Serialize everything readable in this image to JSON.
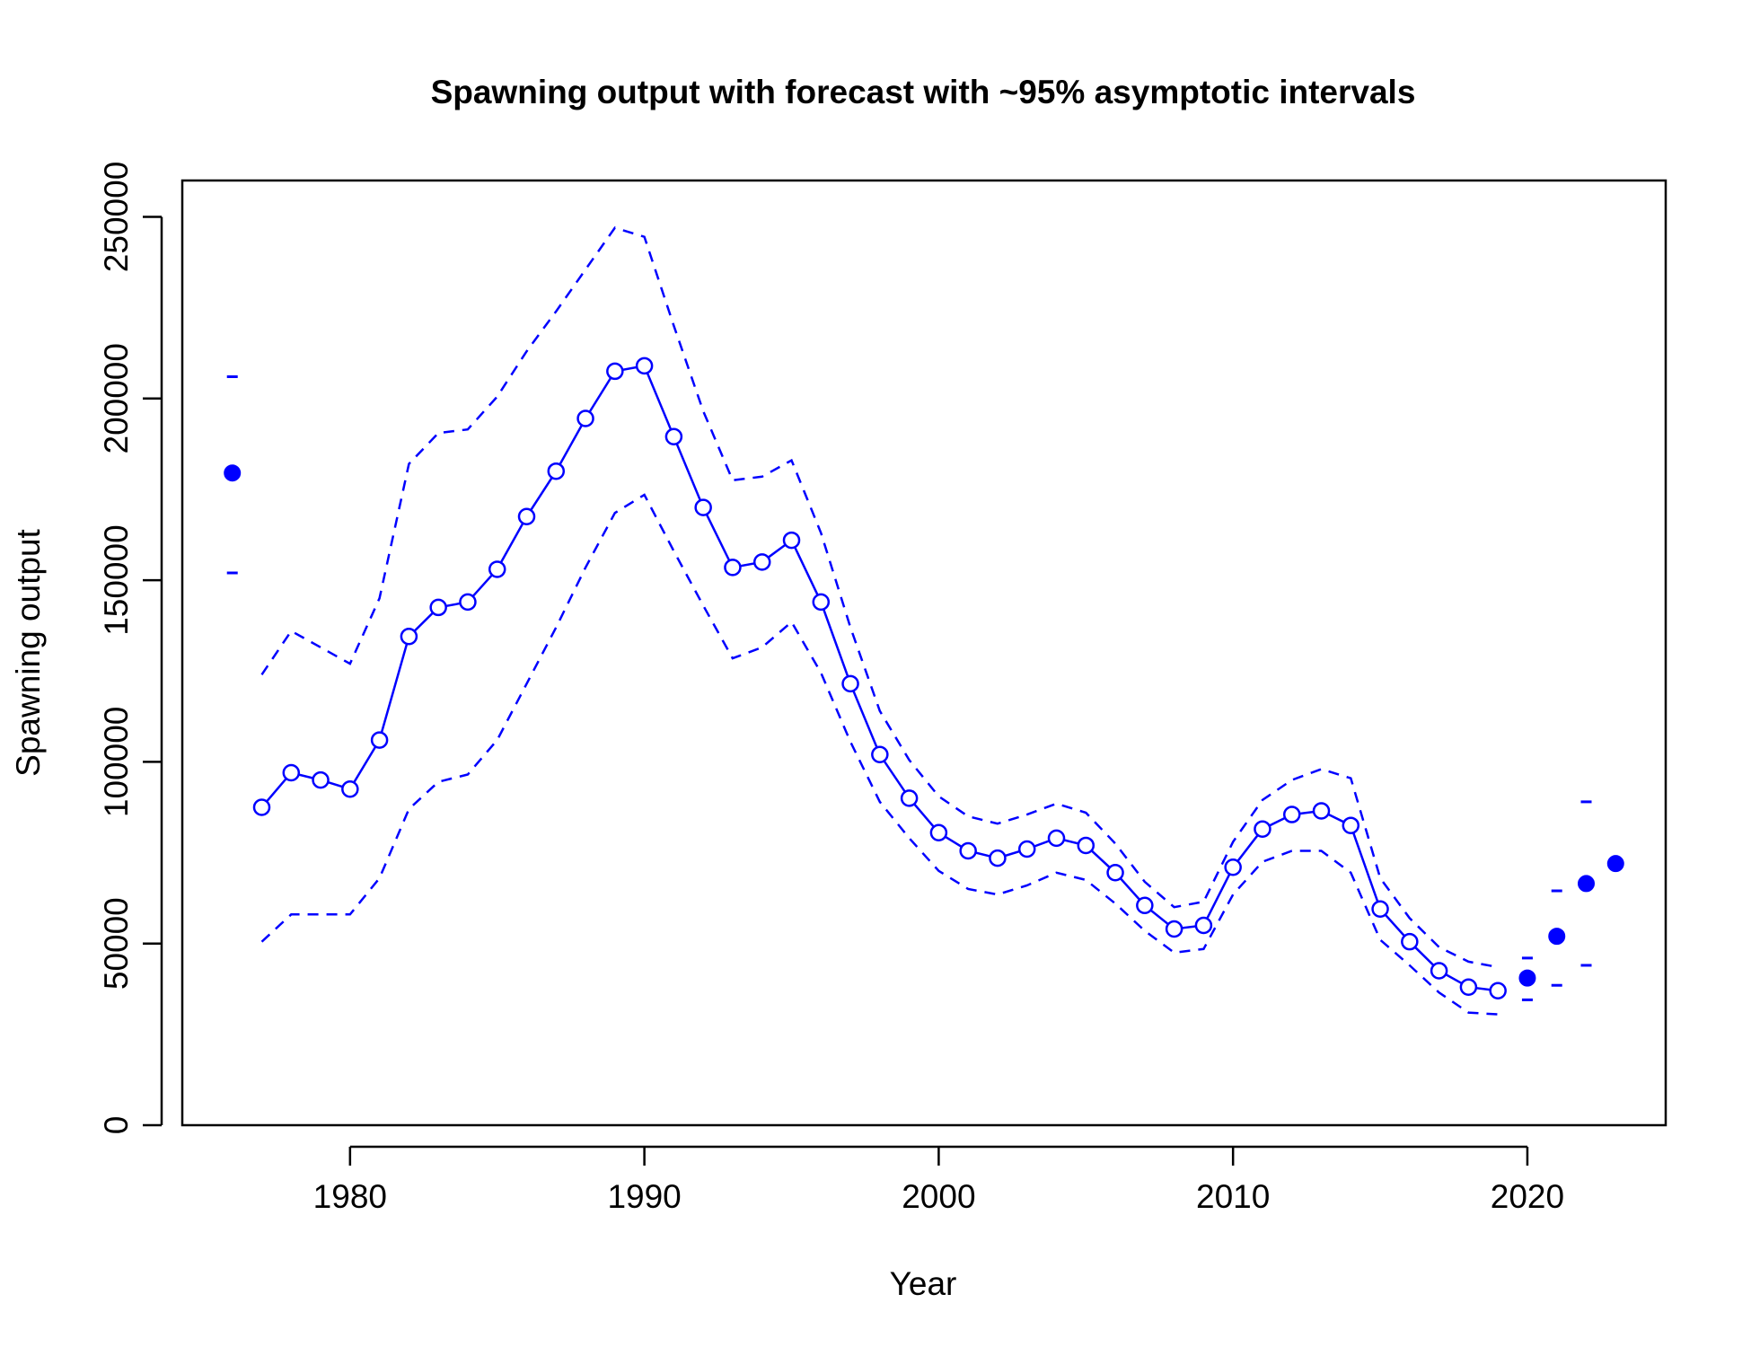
{
  "chart_data": {
    "type": "line",
    "title": "Spawning output with forecast with ~95% asymptotic intervals",
    "xlabel": "Year",
    "ylabel": "Spawning output",
    "xlim": [
      1974.3,
      2024.7
    ],
    "ylim": [
      0,
      260000
    ],
    "x_ticks": [
      1980,
      1990,
      2000,
      2010,
      2020
    ],
    "y_ticks": [
      0,
      50000,
      100000,
      150000,
      200000,
      250000
    ],
    "grid": false,
    "legend": "none",
    "colors": {
      "series": "#0000ff",
      "axis": "#000000"
    },
    "series": [
      {
        "role": "estimate",
        "style": "solid line with open circles",
        "x": [
          1977,
          1978,
          1979,
          1980,
          1981,
          1982,
          1983,
          1984,
          1985,
          1986,
          1987,
          1988,
          1989,
          1990,
          1991,
          1992,
          1993,
          1994,
          1995,
          1996,
          1997,
          1998,
          1999,
          2000,
          2001,
          2002,
          2003,
          2004,
          2005,
          2006,
          2007,
          2008,
          2009,
          2010,
          2011,
          2012,
          2013,
          2014,
          2015,
          2016,
          2017,
          2018,
          2019
        ],
        "values": [
          87500,
          97000,
          95000,
          92500,
          106000,
          134500,
          142500,
          144000,
          153000,
          167500,
          180000,
          194500,
          207500,
          209000,
          189500,
          170000,
          153500,
          155000,
          161000,
          144000,
          121500,
          102000,
          90000,
          80500,
          75500,
          73500,
          76000,
          79000,
          77000,
          69500,
          60500,
          54000,
          55000,
          71000,
          81500,
          85500,
          86500,
          82500,
          59500,
          50500,
          42500,
          38000,
          37000
        ]
      },
      {
        "role": "upper interval",
        "style": "dashed",
        "x": [
          1977,
          1978,
          1979,
          1980,
          1981,
          1982,
          1983,
          1984,
          1985,
          1986,
          1987,
          1988,
          1989,
          1990,
          1991,
          1992,
          1993,
          1994,
          1995,
          1996,
          1997,
          1998,
          1999,
          2000,
          2001,
          2002,
          2003,
          2004,
          2005,
          2006,
          2007,
          2008,
          2009,
          2010,
          2011,
          2012,
          2013,
          2014,
          2015,
          2016,
          2017,
          2018,
          2019
        ],
        "values": [
          124000,
          136000,
          131500,
          127000,
          145000,
          182000,
          190500,
          191500,
          200500,
          213000,
          224000,
          235500,
          247000,
          244500,
          220000,
          196500,
          177500,
          178500,
          183000,
          163000,
          137000,
          114000,
          100500,
          90500,
          85000,
          83000,
          85500,
          88500,
          86000,
          77500,
          67000,
          60000,
          61500,
          78000,
          89500,
          95000,
          98000,
          95500,
          68000,
          57000,
          49000,
          45000,
          43500
        ]
      },
      {
        "role": "lower interval",
        "style": "dashed",
        "x": [
          1977,
          1978,
          1979,
          1980,
          1981,
          1982,
          1983,
          1984,
          1985,
          1986,
          1987,
          1988,
          1989,
          1990,
          1991,
          1992,
          1993,
          1994,
          1995,
          1996,
          1997,
          1998,
          1999,
          2000,
          2001,
          2002,
          2003,
          2004,
          2005,
          2006,
          2007,
          2008,
          2009,
          2010,
          2011,
          2012,
          2013,
          2014,
          2015,
          2016,
          2017,
          2018,
          2019
        ],
        "values": [
          50500,
          58000,
          58000,
          58000,
          68000,
          87000,
          94500,
          96500,
          106000,
          121500,
          137000,
          153500,
          168500,
          173500,
          158000,
          143000,
          128500,
          131500,
          138500,
          124500,
          105500,
          89000,
          79000,
          70000,
          65000,
          63500,
          66000,
          69500,
          67500,
          61000,
          53500,
          47500,
          48500,
          63500,
          72500,
          75500,
          75500,
          69500,
          51000,
          44000,
          36500,
          31000,
          30500
        ]
      },
      {
        "role": "virgin and forecast points",
        "style": "filled circles with short interval dashes",
        "x": [
          1976,
          2020,
          2021,
          2022,
          2023
        ],
        "values": [
          179500,
          40500,
          52000,
          66500,
          72000
        ],
        "upper": [
          206000,
          46000,
          64500,
          89000,
          null
        ],
        "lower": [
          152000,
          34500,
          38500,
          44000,
          null
        ]
      }
    ]
  }
}
